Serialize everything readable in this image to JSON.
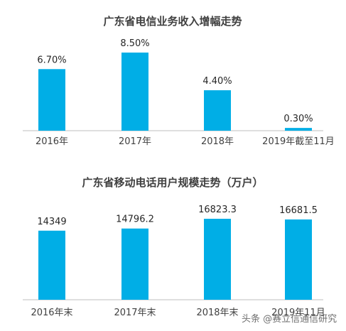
{
  "chart_data": [
    {
      "type": "bar",
      "title": "广东省电信业务收入增幅走势",
      "categories": [
        "2016年",
        "2017年",
        "2018年",
        "2019年截至11月"
      ],
      "values": [
        6.7,
        8.5,
        4.4,
        0.3
      ],
      "value_labels": [
        "6.70%",
        "8.50%",
        "4.40%",
        "0.30%"
      ],
      "ylim": [
        0,
        8.5
      ],
      "color": "#00aee6",
      "grid": false
    },
    {
      "type": "bar",
      "title": "广东省移动电话用户规模走势（万户）",
      "categories": [
        "2016年末",
        "2017年末",
        "2018年末",
        "2019年11月"
      ],
      "values": [
        14349,
        14796.2,
        16823.3,
        16681.5
      ],
      "value_labels": [
        "14349",
        "14796.2",
        "16823.3",
        "16681.5"
      ],
      "ylim": [
        0,
        16823.3
      ],
      "color": "#00aee6",
      "grid": false
    }
  ],
  "watermark": "头条 @赛立信通信研究"
}
